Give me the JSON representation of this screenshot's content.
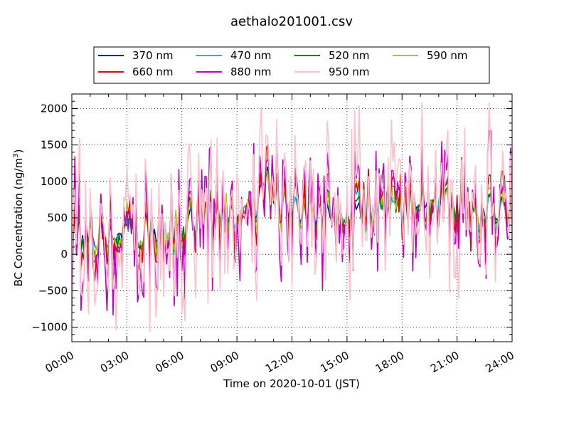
{
  "chart_data": {
    "type": "line",
    "title": "aethalo201001.csv",
    "xlabel": "Time on 2020-10-01 (JST)",
    "ylabel": "BC Concentration (ng/m",
    "ylabel_sup": "3",
    "ylabel_end": ")",
    "xlim": [
      0,
      24
    ],
    "ylim": [
      -1200,
      2200
    ],
    "x_ticks": [
      0,
      3,
      6,
      9,
      12,
      15,
      18,
      21,
      24
    ],
    "x_tick_labels": [
      "00:00",
      "03:00",
      "06:00",
      "09:00",
      "12:00",
      "15:00",
      "18:00",
      "21:00",
      "24:00"
    ],
    "y_ticks": [
      -1000,
      -500,
      0,
      500,
      1000,
      1500,
      2000
    ],
    "y_tick_labels": [
      "−1000",
      "−500",
      "0",
      "500",
      "1000",
      "1500",
      "2000"
    ],
    "grid": true,
    "legend_position": "above-plot",
    "sample_interval_minutes": 5,
    "series": [
      {
        "name": "370 nm",
        "color": "#0000cc",
        "amplitude": 0.25,
        "seed": 11
      },
      {
        "name": "470 nm",
        "color": "#00bfbf",
        "amplitude": 0.3,
        "seed": 23
      },
      {
        "name": "520 nm",
        "color": "#007f00",
        "amplitude": 0.35,
        "seed": 37
      },
      {
        "name": "590 nm",
        "color": "#bfbf00",
        "amplitude": 0.4,
        "seed": 41
      },
      {
        "name": "660 nm",
        "color": "#e00000",
        "amplitude": 0.5,
        "seed": 53
      },
      {
        "name": "880 nm",
        "color": "#bf00bf",
        "amplitude": 0.85,
        "seed": 67
      },
      {
        "name": "950 nm",
        "color": "#ffc0cb",
        "amplitude": 1.0,
        "seed": 79
      }
    ],
    "baseline": [
      [
        0,
        350
      ],
      [
        1,
        320
      ],
      [
        2,
        300
      ],
      [
        3,
        320
      ],
      [
        4,
        330
      ],
      [
        5,
        380
      ],
      [
        6,
        430
      ],
      [
        7,
        480
      ],
      [
        8,
        560
      ],
      [
        9,
        600
      ],
      [
        10,
        700
      ],
      [
        10.5,
        1000
      ],
      [
        11,
        750
      ],
      [
        12,
        650
      ],
      [
        13,
        550
      ],
      [
        14,
        500
      ],
      [
        15,
        520
      ],
      [
        16,
        560
      ],
      [
        17,
        600
      ],
      [
        18,
        650
      ],
      [
        19,
        700
      ],
      [
        20,
        720
      ],
      [
        21,
        680
      ],
      [
        22,
        620
      ],
      [
        23,
        560
      ],
      [
        24,
        520
      ]
    ]
  }
}
